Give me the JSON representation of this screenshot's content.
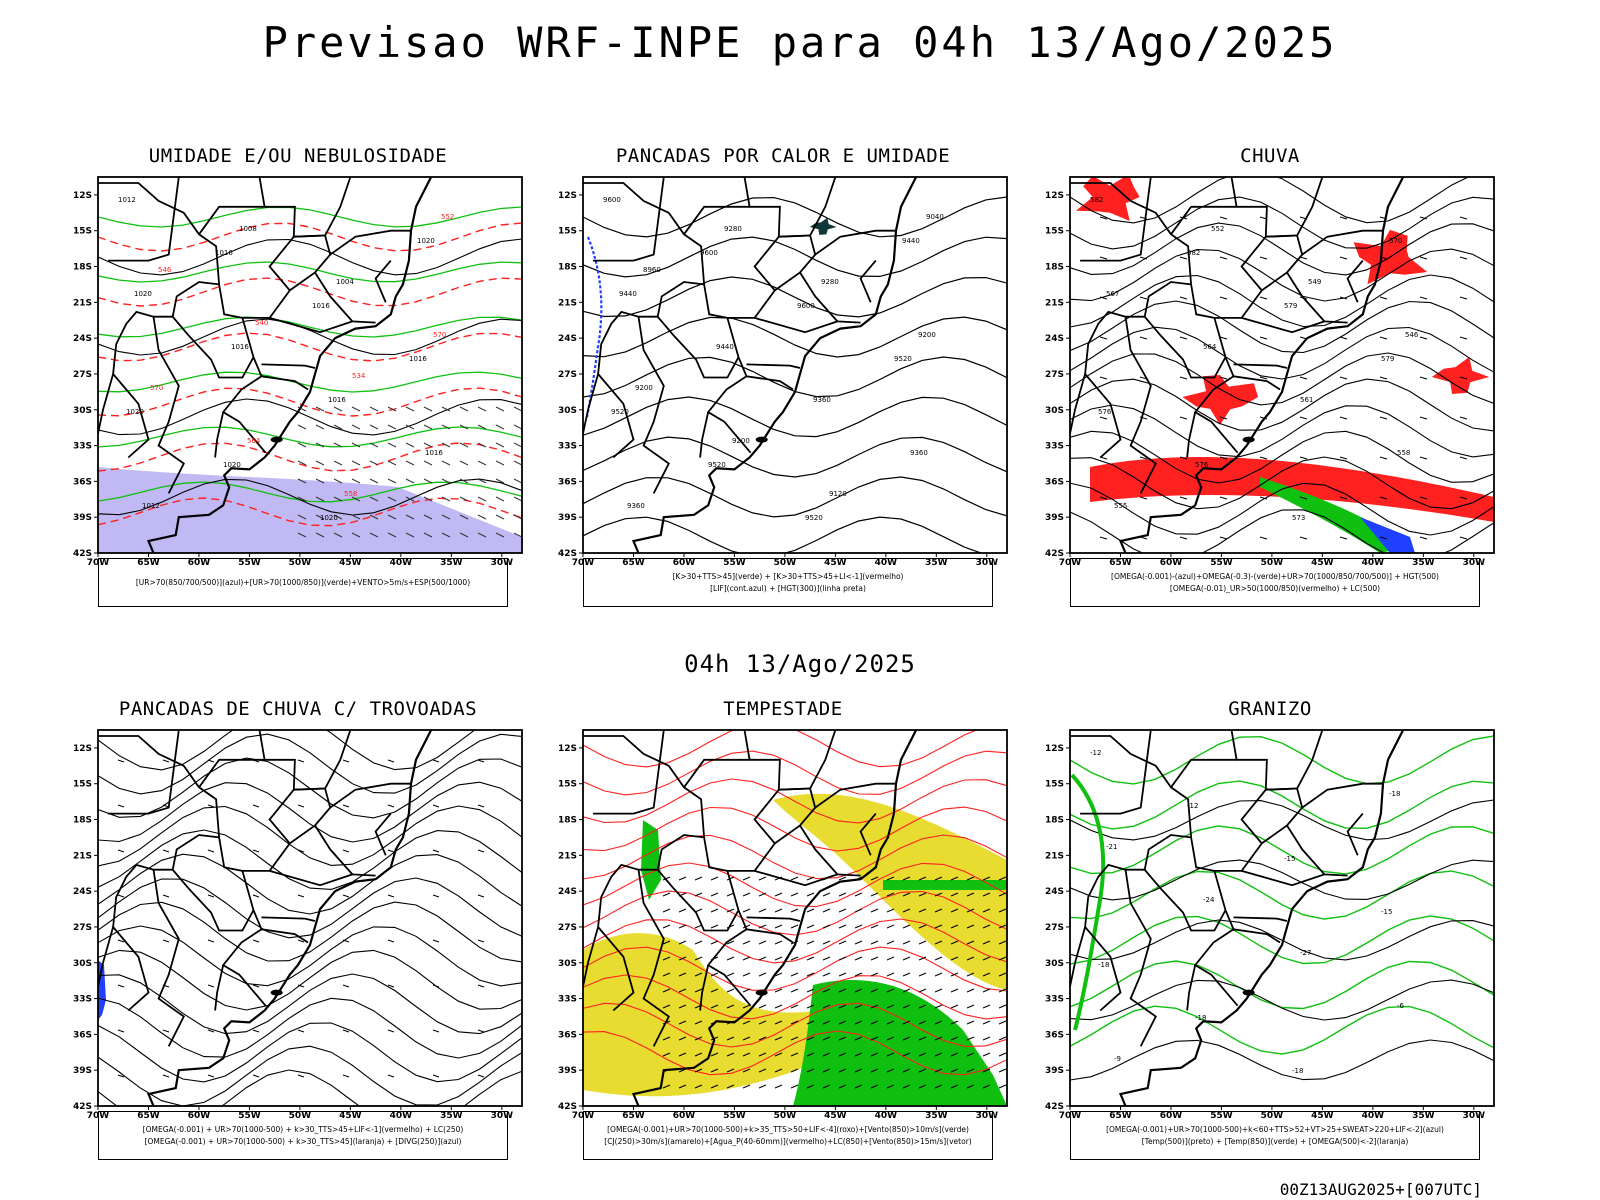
{
  "title": "Previsao WRF-INPE  para 04h 13/Ago/2025",
  "mid_title": "04h 13/Ago/2025",
  "footer": "00Z13AUG2025+[007UTC]",
  "lat_labels": [
    "12S",
    "15S",
    "18S",
    "21S",
    "24S",
    "27S",
    "30S",
    "33S",
    "36S",
    "39S",
    "42S"
  ],
  "lon_labels": [
    "70W",
    "65W",
    "60W",
    "55W",
    "50W",
    "45W",
    "40W",
    "35W",
    "30W"
  ],
  "panels": [
    {
      "title": "UMIDADE E/OU NEBULOSIDADE",
      "caption": [
        "[UR>70(850/700/500)](azul)+[UR>70(1000/850)](verde)+VENTO>5m/s+ESP(500/1000)"
      ],
      "labels": [
        "1012",
        "1016",
        "1016",
        "1016",
        "1020",
        "1020",
        "1020",
        "1020",
        "1020",
        "1016",
        "1016",
        "1016",
        "1012",
        "1008",
        "1004",
        "570",
        "570",
        "564",
        "558",
        "552",
        "546",
        "540",
        "534"
      ]
    },
    {
      "title": "PANCADAS POR CALOR E UMIDADE",
      "caption": [
        "[K>30+TTS>45](verde) + [K>30+TTS>45+LI<-1](vermelho)",
        "[LIF](cont.azul) + [HGT(300)](linha preta)"
      ],
      "labels": [
        "9600",
        "9600",
        "9600",
        "9520",
        "9520",
        "9520",
        "9520",
        "9440",
        "9440",
        "9440",
        "9360",
        "9360",
        "9360",
        "9280",
        "9280",
        "9200",
        "9200",
        "9200",
        "9120",
        "9040",
        "8960"
      ]
    },
    {
      "title": "CHUVA",
      "caption": [
        "[OMEGA(-0.001)-(azul)+OMEGA(-0.3)-(verde)+UR>70(1000/850/700/500)] + HGT(500)",
        "[OMEGA(-0.01)_UR>50(1000/850)(vermelho) + LC(500)"
      ],
      "labels": [
        "582",
        "582",
        "579",
        "579",
        "576",
        "576",
        "573",
        "570",
        "567",
        "564",
        "561",
        "558",
        "555",
        "552",
        "549",
        "546"
      ]
    },
    {
      "title": "PANCADAS DE CHUVA C/ TROVOADAS",
      "caption": [
        "[OMEGA(-0.001) + UR>70(1000-500) + k>30_TTS>45+LIF<-1](vermelho) + LC(250)",
        "[OMEGA(-0.001) + UR>70(1000-500) + k>30_TTS>45](laranja) + [DIVG(250)](azul)"
      ],
      "labels": []
    },
    {
      "title": "TEMPESTADE",
      "caption": [
        "[OMEGA(-0.001)+UR>70(1000-500)+k>35_TTS>50+LIF<-4](roxo)+[Vento(850)>10m/s](verde)",
        "[CJ(250)>30m/s](amarelo)+[Agua_P(40-60mm)](vermelho)+LC(850)+[Vento(850)>15m/s](vetor)"
      ],
      "labels": []
    },
    {
      "title": "GRANIZO",
      "caption": [
        "[OMEGA(-0.001)+UR>70(1000-500)+k<60+TTS>52+VT>25+SWEAT>220+LIF<-2](azul)",
        "[Temp(500)](preto) + [Temp(850)](verde) + [OMEGA(500)<-2](laranja)"
      ],
      "labels": [
        "-12",
        "-12",
        "-15",
        "-15",
        "-18",
        "-18",
        "-18",
        "-18",
        "-21",
        "-24",
        "-27",
        "-6",
        "-9"
      ]
    }
  ],
  "colors": {
    "land_border": "#000000",
    "red": "#ff2020",
    "green": "#10c010",
    "blue": "#2040ff",
    "yellow": "#e8dc30",
    "lavender": "#b0a8f0",
    "teal": "#103838"
  }
}
